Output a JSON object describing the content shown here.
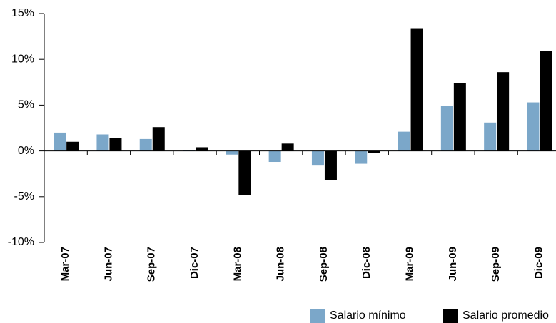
{
  "chart_data": {
    "type": "bar",
    "categories": [
      "Mar-07",
      "Jun-07",
      "Sep-07",
      "Dic-07",
      "Mar-08",
      "Jun-08",
      "Sep-08",
      "Dic-08",
      "Mar-09",
      "Jun-09",
      "Sep-09",
      "Dic-09"
    ],
    "series": [
      {
        "name": "Salario mínimo",
        "color": "#7ba7c9",
        "values": [
          2.0,
          1.8,
          1.3,
          0.1,
          -0.4,
          -1.2,
          -1.6,
          -1.4,
          2.1,
          4.9,
          3.1,
          5.3
        ]
      },
      {
        "name": "Salario promedio",
        "color": "#000000",
        "values": [
          1.0,
          1.4,
          2.6,
          0.4,
          -4.8,
          0.8,
          -3.2,
          -0.2,
          13.4,
          7.4,
          8.6,
          10.9
        ]
      }
    ],
    "ylim": [
      -10,
      15
    ],
    "yticks": [
      {
        "value": -10,
        "label": "-10%"
      },
      {
        "value": -5,
        "label": "-5%"
      },
      {
        "value": 0,
        "label": "0%"
      },
      {
        "value": 5,
        "label": "5%"
      },
      {
        "value": 10,
        "label": "10%"
      },
      {
        "value": 15,
        "label": "15%"
      }
    ],
    "grid": false,
    "legend": "bottom-right"
  }
}
